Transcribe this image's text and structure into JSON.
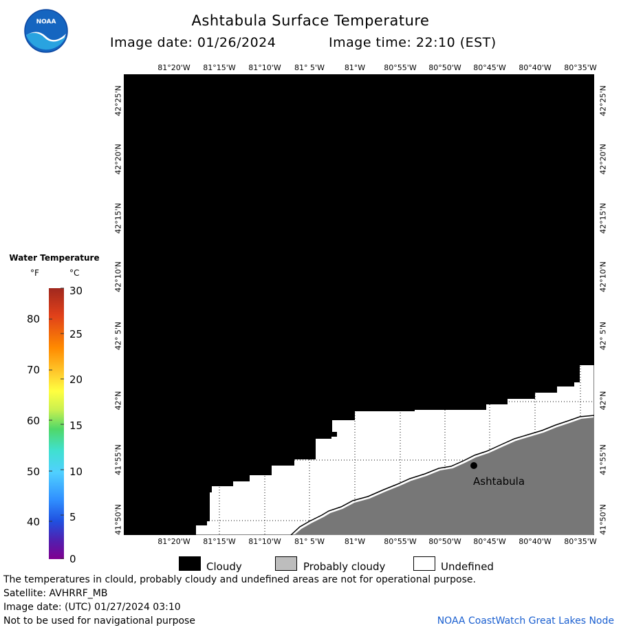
{
  "header": {
    "title": "Ashtabula Surface Temperature",
    "image_date": "Image date: 01/26/2024",
    "image_time": "Image time: 22:10 (EST)"
  },
  "map": {
    "lon_labels": [
      "81°20'W",
      "81°15'W",
      "81°10'W",
      "81° 5'W",
      "81°W",
      "80°55'W",
      "80°50'W",
      "80°45'W",
      "80°40'W",
      "80°35'W"
    ],
    "lat_labels": [
      "42°25'N",
      "42°20'N",
      "42°15'N",
      "42°10'N",
      "42° 5'N",
      "42°N",
      "41°55'N",
      "41°50'N"
    ],
    "place_label": "Ashtabula",
    "colors": {
      "cloudy": "#000000",
      "land": "#777777",
      "undefined": "#ffffff"
    }
  },
  "legend": {
    "title": "Water Temperature",
    "unit_f": "°F",
    "unit_c": "°C",
    "f_ticks": [
      "80",
      "70",
      "60",
      "50",
      "40"
    ],
    "c_ticks": [
      "30",
      "25",
      "20",
      "15",
      "10",
      "5",
      "0"
    ]
  },
  "key": {
    "cloudy": "Cloudy",
    "probably_cloudy": "Probably cloudy",
    "undefined": "Undefined"
  },
  "footer": {
    "line1": "The temperatures in clould, probably cloudy and undefined areas are not for operational purpose.",
    "line2": "Satellite: AVHRRF_MB",
    "line3": "Image date: (UTC) 01/27/2024  03:10",
    "line4": "Not to be used for navigational purpose",
    "credit": "NOAA CoastWatch Great Lakes Node"
  }
}
